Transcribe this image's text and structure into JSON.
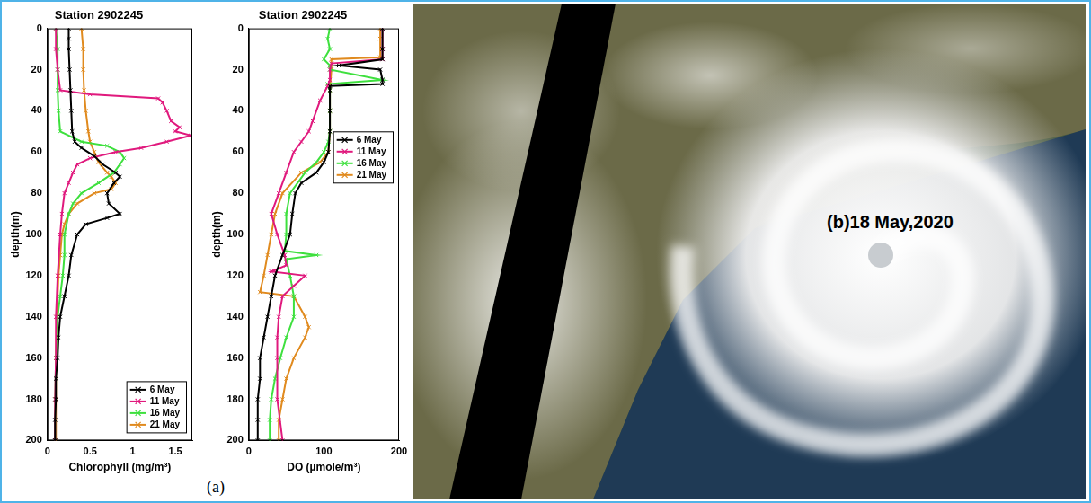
{
  "chart_data": [
    {
      "type": "line",
      "title": "Station 2902245",
      "x_label": "Chlorophyll (mg/m³)",
      "y_label": "depth(m)",
      "xlim": [
        0,
        1.7
      ],
      "xticks": [
        0,
        0.5,
        1,
        1.5
      ],
      "ylim": [
        0,
        200
      ],
      "yticks": [
        0,
        20,
        40,
        60,
        80,
        100,
        120,
        140,
        160,
        180,
        200
      ],
      "grid": false,
      "legend": "lower right",
      "marker": "x",
      "series": [
        {
          "name": "6 May",
          "color": "#000000",
          "x": [
            0.25,
            0.25,
            0.25,
            0.26,
            0.27,
            0.28,
            0.29,
            0.32,
            0.4,
            0.55,
            0.65,
            0.8,
            0.85,
            0.78,
            0.7,
            0.72,
            0.85,
            0.7,
            0.45,
            0.35,
            0.28,
            0.25,
            0.2,
            0.15,
            0.13,
            0.12,
            0.1,
            0.1,
            0.09,
            0.09
          ],
          "y": [
            0,
            5,
            10,
            20,
            30,
            40,
            50,
            55,
            58,
            62,
            66,
            70,
            72,
            75,
            80,
            85,
            90,
            92,
            95,
            100,
            110,
            120,
            130,
            140,
            150,
            160,
            170,
            180,
            190,
            200
          ]
        },
        {
          "name": "11 May",
          "color": "#e0197d",
          "x": [
            0.1,
            0.1,
            0.12,
            0.15,
            0.5,
            1.3,
            1.35,
            1.4,
            1.45,
            1.55,
            1.5,
            1.68,
            1.4,
            1.1,
            0.8,
            0.5,
            0.35,
            0.3,
            0.25,
            0.2,
            0.17,
            0.15,
            0.12,
            0.1,
            0.1,
            0.09,
            0.09
          ],
          "y": [
            0,
            10,
            20,
            30,
            32,
            34,
            36,
            40,
            45,
            48,
            50,
            52,
            55,
            58,
            60,
            63,
            66,
            70,
            75,
            80,
            90,
            100,
            120,
            140,
            160,
            180,
            200
          ]
        },
        {
          "name": "16 May",
          "color": "#3ee03e",
          "x": [
            0.1,
            0.12,
            0.12,
            0.12,
            0.13,
            0.15,
            0.4,
            0.7,
            0.85,
            0.9,
            0.85,
            0.78,
            0.6,
            0.4,
            0.3,
            0.25,
            0.2,
            0.2,
            0.18,
            0.15,
            0.12,
            0.1,
            0.09,
            0.09
          ],
          "y": [
            0,
            10,
            20,
            30,
            40,
            50,
            55,
            57,
            60,
            63,
            66,
            70,
            75,
            80,
            85,
            90,
            100,
            110,
            120,
            130,
            140,
            160,
            180,
            200
          ]
        },
        {
          "name": "21 May",
          "color": "#e08a1e",
          "x": [
            0.4,
            0.42,
            0.42,
            0.43,
            0.45,
            0.48,
            0.5,
            0.55,
            0.6,
            0.7,
            0.75,
            0.8,
            0.75,
            0.55,
            0.35,
            0.25,
            0.2,
            0.17,
            0.15,
            0.13,
            0.11,
            0.1,
            0.1,
            0.1
          ],
          "y": [
            0,
            10,
            20,
            30,
            40,
            50,
            55,
            60,
            65,
            70,
            72,
            75,
            78,
            80,
            85,
            90,
            95,
            100,
            110,
            120,
            140,
            160,
            180,
            200
          ]
        }
      ]
    },
    {
      "type": "line",
      "title": "Station 2902245",
      "x_label": "DO (µmole/m³)",
      "y_label": "depth(m)",
      "xlim": [
        0,
        200
      ],
      "xticks": [
        0,
        100,
        200
      ],
      "ylim": [
        0,
        200
      ],
      "yticks": [
        0,
        20,
        40,
        60,
        80,
        100,
        120,
        140,
        160,
        180,
        200
      ],
      "grid": false,
      "legend": "center right",
      "marker": "x",
      "series": [
        {
          "name": "6 May",
          "color": "#000000",
          "x": [
            178,
            178,
            178,
            120,
            175,
            178,
            178,
            108,
            108,
            108,
            108,
            106,
            100,
            90,
            70,
            62,
            58,
            55,
            45,
            35,
            30,
            25,
            20,
            15,
            15,
            12,
            12,
            12
          ],
          "y": [
            0,
            10,
            15,
            18,
            20,
            25,
            27,
            28,
            30,
            40,
            50,
            60,
            65,
            70,
            75,
            80,
            90,
            100,
            110,
            120,
            130,
            140,
            150,
            160,
            170,
            180,
            190,
            200
          ]
        },
        {
          "name": "11 May",
          "color": "#e0197d",
          "x": [
            178,
            178,
            178,
            110,
            108,
            108,
            105,
            95,
            85,
            80,
            70,
            60,
            50,
            40,
            30,
            38,
            48,
            50,
            30,
            75,
            60,
            45,
            40,
            38,
            38,
            38,
            45
          ],
          "y": [
            0,
            10,
            15,
            17,
            20,
            25,
            28,
            35,
            45,
            50,
            55,
            60,
            70,
            80,
            90,
            100,
            110,
            115,
            118,
            120,
            125,
            130,
            140,
            150,
            160,
            180,
            200
          ]
        },
        {
          "name": "16 May",
          "color": "#3ee03e",
          "x": [
            108,
            105,
            108,
            100,
            108,
            108,
            178,
            105,
            108,
            108,
            108,
            106,
            100,
            90,
            75,
            55,
            50,
            50,
            48,
            90,
            50,
            55,
            60,
            60,
            50,
            42,
            35,
            30,
            28,
            28
          ],
          "y": [
            0,
            5,
            10,
            15,
            18,
            20,
            25,
            27,
            30,
            40,
            50,
            55,
            60,
            65,
            70,
            80,
            90,
            100,
            108,
            110,
            112,
            120,
            130,
            140,
            150,
            160,
            170,
            180,
            190,
            200
          ]
        },
        {
          "name": "21 May",
          "color": "#e08a1e",
          "x": [
            175,
            175,
            175,
            110,
            110,
            108,
            108,
            108,
            106,
            95,
            70,
            45,
            35,
            30,
            25,
            20,
            15,
            60,
            75,
            80,
            75,
            60,
            50,
            45,
            40,
            40
          ],
          "y": [
            0,
            5,
            14,
            15,
            20,
            30,
            40,
            50,
            60,
            65,
            70,
            80,
            90,
            100,
            110,
            120,
            128,
            130,
            140,
            145,
            150,
            160,
            170,
            180,
            190,
            200
          ]
        }
      ]
    }
  ],
  "panel_a_label": "(a)",
  "image_panel": {
    "label": "(b)18 May,2020"
  }
}
